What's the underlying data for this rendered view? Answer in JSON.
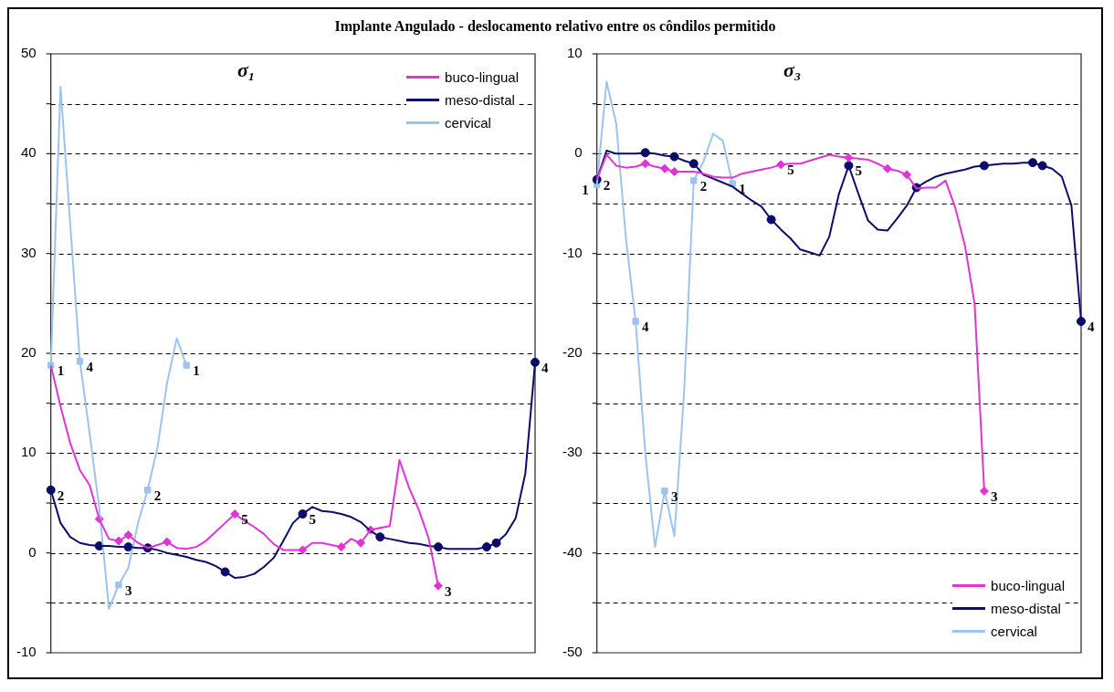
{
  "chart_data": [
    {
      "type": "line",
      "title": "Implante Angulado - deslocamento relativo entre os côndilos permitido",
      "subtitle": "σ₁",
      "categories": [
        null,
        null,
        null,
        null,
        null,
        null,
        null,
        null,
        null,
        null,
        null,
        null,
        null,
        null,
        null,
        null,
        null,
        null,
        null,
        null,
        null,
        null,
        null,
        null,
        null,
        null,
        null,
        null,
        null,
        null,
        null,
        null,
        null,
        null,
        null,
        null,
        null,
        null,
        null,
        null,
        null,
        null,
        null,
        null,
        null,
        null,
        null,
        null,
        null,
        null,
        null
      ],
      "ylim": [
        -10,
        50
      ],
      "yticks": [
        -10,
        {
          "value": -5,
          "label": null
        },
        0,
        {
          "value": 5,
          "label": null
        },
        10,
        {
          "value": 15,
          "label": null
        },
        20,
        {
          "value": 25,
          "label": null
        },
        30,
        {
          "value": 35,
          "label": null
        },
        40,
        {
          "value": 45,
          "label": null
        },
        50
      ],
      "tick_labels": "y",
      "grid": "y",
      "legend": "top right",
      "series": [
        {
          "name": "buco-lingual",
          "color": "#e332d6",
          "marker": "none",
          "values": [
            18.8,
            14.7,
            11,
            8.3,
            6.8,
            3.4,
            1.4,
            1.2,
            1.8,
            1.0,
            0.5,
            0.8,
            1.1,
            0.5,
            0.4,
            0.6,
            1.2,
            2.1,
            3.0,
            3.9,
            3.2,
            2.6,
            1.9,
            0.9,
            0.3,
            0.3,
            0.3,
            1.0,
            1.0,
            0.8,
            0.6,
            1.4,
            1.0,
            2.3,
            2.5,
            2.7,
            9.3,
            6.5,
            4.3,
            1.5,
            -3.3,
            null,
            null,
            null,
            null,
            null,
            null,
            null,
            null,
            null,
            null
          ]
        },
        {
          "name": "meso-distal",
          "color": "#0c0c6a",
          "marker": "none",
          "values": [
            6.3,
            3.0,
            1.6,
            1.0,
            0.8,
            0.7,
            0.7,
            0.6,
            0.6,
            0.5,
            0.5,
            0.3,
            0,
            -0.2,
            -0.4,
            -0.7,
            -0.9,
            -1.3,
            -1.9,
            -2.5,
            -2.4,
            -2.1,
            -1.4,
            -0.5,
            1.2,
            3.0,
            3.9,
            4.6,
            4.2,
            4.1,
            3.9,
            3.6,
            3.1,
            2.2,
            1.6,
            1.4,
            1.2,
            1.0,
            0.9,
            0.7,
            0.6,
            0.4,
            0.4,
            0.4,
            0.4,
            0.6,
            1.0,
            1.9,
            3.5,
            8,
            19.1
          ]
        },
        {
          "name": "cervical",
          "color": "#9cc4ee",
          "marker": "none",
          "values": [
            18.8,
            46.7,
            33.0,
            19.2,
            12.0,
            4.5,
            -5.6,
            -3.2,
            -1.5,
            3.0,
            6.3,
            10.5,
            17.0,
            21.5,
            18.8,
            null,
            null,
            null,
            null,
            null,
            null,
            null,
            null,
            null,
            null,
            null,
            null,
            null,
            null,
            null,
            null,
            null,
            null,
            null,
            null,
            null,
            null,
            null,
            null,
            null,
            null,
            null,
            null,
            null,
            null,
            null,
            null,
            null,
            null,
            null,
            null
          ]
        },
        {
          "type": "scatter",
          "color": "#e332d6",
          "marker": "diamond",
          "values": [
            null,
            null,
            null,
            null,
            null,
            3.4,
            null,
            1.2,
            1.8,
            null,
            null,
            null,
            1.1,
            null,
            null,
            null,
            null,
            null,
            null,
            null,
            null,
            null,
            null,
            null,
            null,
            null,
            0.3,
            null,
            null,
            null,
            0.6,
            null,
            1.0,
            2.3,
            null,
            null,
            null,
            null,
            null,
            null,
            null,
            null,
            null,
            null,
            null,
            null,
            null,
            null,
            null,
            null,
            null
          ]
        },
        {
          "type": "scatter",
          "color": "#0c0c6a",
          "marker": "circle",
          "values": [
            null,
            null,
            null,
            null,
            null,
            0.7,
            null,
            null,
            0.6,
            null,
            0.5,
            null,
            null,
            null,
            null,
            null,
            null,
            null,
            -1.9,
            null,
            null,
            null,
            null,
            null,
            null,
            null,
            null,
            null,
            null,
            null,
            null,
            null,
            null,
            null,
            1.6,
            null,
            null,
            null,
            null,
            null,
            0.6,
            null,
            null,
            null,
            null,
            0.6,
            1.0,
            null,
            null,
            null,
            null
          ]
        },
        {
          "type": "scatter",
          "name": "5",
          "color": "#e332d6",
          "marker": "diamond",
          "values": [
            null,
            null,
            null,
            null,
            null,
            null,
            null,
            null,
            null,
            null,
            null,
            null,
            null,
            null,
            null,
            null,
            null,
            null,
            null,
            3.9,
            null,
            null,
            null,
            null,
            null,
            null,
            null,
            null,
            null,
            null,
            null,
            null,
            null,
            null,
            null,
            null,
            null,
            null,
            null,
            null,
            null,
            null,
            null,
            null,
            null,
            null,
            null,
            null,
            null,
            null,
            null
          ]
        },
        {
          "type": "scatter",
          "name": "3",
          "color": "#e332d6",
          "marker": "diamond",
          "values": [
            null,
            null,
            null,
            null,
            null,
            null,
            null,
            null,
            null,
            null,
            null,
            null,
            null,
            null,
            null,
            null,
            null,
            null,
            null,
            null,
            null,
            null,
            null,
            null,
            null,
            null,
            null,
            null,
            null,
            null,
            null,
            null,
            null,
            null,
            null,
            null,
            null,
            null,
            null,
            null,
            -3.3,
            null,
            null,
            null,
            null,
            null,
            null,
            null,
            null,
            null,
            null
          ]
        },
        {
          "type": "scatter",
          "name": "2",
          "color": "#0c0c6a",
          "marker": "circle",
          "values": [
            6.3,
            null,
            null,
            null,
            null,
            null,
            null,
            null,
            null,
            null,
            null,
            null,
            null,
            null,
            null,
            null,
            null,
            null,
            null,
            null,
            null,
            null,
            null,
            null,
            null,
            null,
            null,
            null,
            null,
            null,
            null,
            null,
            null,
            null,
            null,
            null,
            null,
            null,
            null,
            null,
            null,
            null,
            null,
            null,
            null,
            null,
            null,
            null,
            null,
            null,
            null
          ]
        },
        {
          "type": "scatter",
          "name": "5",
          "color": "#0c0c6a",
          "marker": "circle",
          "values": [
            null,
            null,
            null,
            null,
            null,
            null,
            null,
            null,
            null,
            null,
            null,
            null,
            null,
            null,
            null,
            null,
            null,
            null,
            null,
            null,
            null,
            null,
            null,
            null,
            null,
            null,
            3.9,
            null,
            null,
            null,
            null,
            null,
            null,
            null,
            null,
            null,
            null,
            null,
            null,
            null,
            null,
            null,
            null,
            null,
            null,
            null,
            null,
            null,
            null,
            null,
            null
          ]
        },
        {
          "type": "scatter",
          "name": "4",
          "color": "#0c0c6a",
          "marker": "circle",
          "values": [
            null,
            null,
            null,
            null,
            null,
            null,
            null,
            null,
            null,
            null,
            null,
            null,
            null,
            null,
            null,
            null,
            null,
            null,
            null,
            null,
            null,
            null,
            null,
            null,
            null,
            null,
            null,
            null,
            null,
            null,
            null,
            null,
            null,
            null,
            null,
            null,
            null,
            null,
            null,
            null,
            null,
            null,
            null,
            null,
            null,
            null,
            null,
            null,
            null,
            null,
            19.1
          ]
        },
        {
          "type": "scatter",
          "name": "1",
          "color": "#9cc4ee",
          "marker": "square",
          "values": [
            18.8,
            null,
            null,
            null,
            null,
            null,
            null,
            null,
            null,
            null,
            null,
            null,
            null,
            null,
            null,
            null,
            null,
            null,
            null,
            null,
            null,
            null,
            null,
            null,
            null,
            null,
            null,
            null,
            null,
            null,
            null,
            null,
            null,
            null,
            null,
            null,
            null,
            null,
            null,
            null,
            null,
            null,
            null,
            null,
            null,
            null,
            null,
            null,
            null,
            null,
            null
          ]
        },
        {
          "type": "scatter",
          "name": "4",
          "color": "#9cc4ee",
          "marker": "square",
          "values": [
            null,
            null,
            null,
            19.2,
            null,
            null,
            null,
            null,
            null,
            null,
            null,
            null,
            null,
            null,
            null,
            null,
            null,
            null,
            null,
            null,
            null,
            null,
            null,
            null,
            null,
            null,
            null,
            null,
            null,
            null,
            null,
            null,
            null,
            null,
            null,
            null,
            null,
            null,
            null,
            null,
            null,
            null,
            null,
            null,
            null,
            null,
            null,
            null,
            null,
            null,
            null
          ]
        },
        {
          "type": "scatter",
          "name": "3",
          "color": "#9cc4ee",
          "marker": "square",
          "values": [
            null,
            null,
            null,
            null,
            null,
            null,
            null,
            -3.2,
            null,
            null,
            null,
            null,
            null,
            null,
            null,
            null,
            null,
            null,
            null,
            null,
            null,
            null,
            null,
            null,
            null,
            null,
            null,
            null,
            null,
            null,
            null,
            null,
            null,
            null,
            null,
            null,
            null,
            null,
            null,
            null,
            null,
            null,
            null,
            null,
            null,
            null,
            null,
            null,
            null,
            null,
            null
          ]
        },
        {
          "type": "scatter",
          "name": "2",
          "color": "#9cc4ee",
          "marker": "square",
          "values": [
            null,
            null,
            null,
            null,
            null,
            null,
            null,
            null,
            null,
            null,
            6.3,
            null,
            null,
            null,
            null,
            null,
            null,
            null,
            null,
            null,
            null,
            null,
            null,
            null,
            null,
            null,
            null,
            null,
            null,
            null,
            null,
            null,
            null,
            null,
            null,
            null,
            null,
            null,
            null,
            null,
            null,
            null,
            null,
            null,
            null,
            null,
            null,
            null,
            null,
            null,
            null
          ]
        },
        {
          "type": "scatter",
          "name": "1",
          "color": "#9cc4ee",
          "marker": "square",
          "values": [
            null,
            null,
            null,
            null,
            null,
            null,
            null,
            null,
            null,
            null,
            null,
            null,
            null,
            null,
            18.8,
            null,
            null,
            null,
            null,
            null,
            null,
            null,
            null,
            null,
            null,
            null,
            null,
            null,
            null,
            null,
            null,
            null,
            null,
            null,
            null,
            null,
            null,
            null,
            null,
            null,
            null,
            null,
            null,
            null,
            null,
            null,
            null,
            null,
            null,
            null,
            null
          ]
        }
      ]
    },
    {
      "type": "line",
      "subtitle": "σ₃",
      "categories": [
        null,
        null,
        null,
        null,
        null,
        null,
        null,
        null,
        null,
        null,
        null,
        null,
        null,
        null,
        null,
        null,
        null,
        null,
        null,
        null,
        null,
        null,
        null,
        null,
        null,
        null,
        null,
        null,
        null,
        null,
        null,
        null,
        null,
        null,
        null,
        null,
        null,
        null,
        null,
        null,
        null,
        null,
        null,
        null,
        null,
        null,
        null,
        null,
        null,
        null,
        null
      ],
      "ylim": [
        -50,
        10
      ],
      "yticks": [
        -50,
        {
          "value": -45,
          "label": null
        },
        -40,
        {
          "value": -35,
          "label": null
        },
        -30,
        {
          "value": -25,
          "label": null
        },
        -20,
        {
          "value": -15,
          "label": null
        },
        -10,
        {
          "value": -5,
          "label": null
        },
        0,
        {
          "value": 5,
          "label": null
        },
        10
      ],
      "tick_labels": "y",
      "grid": "y",
      "legend": "bottom right",
      "series": [
        {
          "name": "buco-lingual",
          "color": "#e332d6",
          "marker": "none",
          "values": [
            -2.6,
            -0.1,
            -1.2,
            -1.4,
            -1.3,
            -1.0,
            -1.3,
            -1.5,
            -1.8,
            -1.8,
            -1.8,
            -2.0,
            -2.3,
            -2.4,
            -2.4,
            -2.0,
            -1.8,
            -1.6,
            -1.4,
            -1.1,
            -1.0,
            -1.0,
            -0.7,
            -0.4,
            -0.1,
            -0.3,
            -0.4,
            -0.5,
            -0.6,
            -1.0,
            -1.5,
            -1.7,
            -2.1,
            -3.5,
            -3.4,
            -3.4,
            -2.7,
            -5.4,
            -9.2,
            -15,
            -33.8,
            null,
            null,
            null,
            null,
            null,
            null,
            null,
            null,
            null,
            null
          ]
        },
        {
          "name": "meso-distal",
          "color": "#0c0c6a",
          "marker": "none",
          "values": [
            -2.6,
            0.3,
            0,
            0,
            0,
            0.1,
            0,
            -0.2,
            -0.3,
            -0.7,
            -1.0,
            -2.1,
            -2.5,
            -2.9,
            -3.3,
            -4.0,
            -4.7,
            -5.3,
            -6.6,
            -7.6,
            -8.5,
            -9.6,
            -9.9,
            -10.2,
            -8.3,
            -4.0,
            -1.2,
            -4.0,
            -6.7,
            -7.6,
            -7.7,
            -6.5,
            -5.2,
            -3.4,
            -2.8,
            -2.3,
            -2.0,
            -1.8,
            -1.6,
            -1.3,
            -1.2,
            -1.1,
            -1.0,
            -1.0,
            -0.9,
            -0.9,
            -1.2,
            -1.5,
            -2.3,
            -5.2,
            -16.8
          ]
        },
        {
          "name": "cervical",
          "color": "#9cc4ee",
          "marker": "none",
          "values": [
            -3.1,
            7.2,
            3.0,
            -8.5,
            -16.8,
            -30,
            -39.4,
            -33.8,
            -38.3,
            -24,
            -2.7,
            -0.8,
            2.0,
            1.3,
            -3.0,
            null,
            null,
            null,
            null,
            null,
            null,
            null,
            null,
            null,
            null,
            null,
            null,
            null,
            null,
            null,
            null,
            null,
            null,
            null,
            null,
            null,
            null,
            null,
            null,
            null,
            null,
            null,
            null,
            null,
            null,
            null,
            null,
            null,
            null,
            null,
            null
          ]
        },
        {
          "type": "scatter",
          "color": "#e332d6",
          "marker": "diamond",
          "values": [
            null,
            null,
            null,
            null,
            null,
            -1.0,
            null,
            -1.5,
            -1.8,
            null,
            null,
            null,
            null,
            null,
            null,
            null,
            null,
            null,
            null,
            null,
            null,
            null,
            null,
            null,
            null,
            null,
            -0.4,
            null,
            null,
            null,
            -1.5,
            null,
            -2.1,
            null,
            null,
            null,
            null,
            null,
            null,
            null,
            null,
            null,
            null,
            null,
            null,
            null,
            null,
            null,
            null,
            null,
            null
          ]
        },
        {
          "type": "scatter",
          "color": "#0c0c6a",
          "marker": "circle",
          "values": [
            null,
            null,
            null,
            null,
            null,
            0.1,
            null,
            null,
            -0.3,
            null,
            -1.0,
            null,
            null,
            null,
            null,
            null,
            null,
            null,
            -6.6,
            null,
            null,
            null,
            null,
            null,
            null,
            null,
            null,
            null,
            null,
            null,
            null,
            null,
            null,
            -3.4,
            null,
            null,
            null,
            null,
            null,
            null,
            -1.2,
            null,
            null,
            null,
            null,
            -0.9,
            -1.2,
            null,
            null,
            null,
            null
          ]
        },
        {
          "type": "scatter",
          "name": "5",
          "color": "#e332d6",
          "marker": "diamond",
          "values": [
            null,
            null,
            null,
            null,
            null,
            null,
            null,
            null,
            null,
            null,
            null,
            null,
            null,
            null,
            null,
            null,
            null,
            null,
            null,
            -1.1,
            null,
            null,
            null,
            null,
            null,
            null,
            null,
            null,
            null,
            null,
            null,
            null,
            null,
            null,
            null,
            null,
            null,
            null,
            null,
            null,
            null,
            null,
            null,
            null,
            null,
            null,
            null,
            null,
            null,
            null,
            null
          ]
        },
        {
          "type": "scatter",
          "name": "3",
          "color": "#e332d6",
          "marker": "diamond",
          "values": [
            null,
            null,
            null,
            null,
            null,
            null,
            null,
            null,
            null,
            null,
            null,
            null,
            null,
            null,
            null,
            null,
            null,
            null,
            null,
            null,
            null,
            null,
            null,
            null,
            null,
            null,
            null,
            null,
            null,
            null,
            null,
            null,
            null,
            null,
            null,
            null,
            null,
            null,
            null,
            null,
            -33.8,
            null,
            null,
            null,
            null,
            null,
            null,
            null,
            null,
            null,
            null
          ]
        },
        {
          "type": "scatter",
          "name": "2",
          "color": "#0c0c6a",
          "marker": "circle",
          "values": [
            -2.6,
            null,
            null,
            null,
            null,
            null,
            null,
            null,
            null,
            null,
            null,
            null,
            null,
            null,
            null,
            null,
            null,
            null,
            null,
            null,
            null,
            null,
            null,
            null,
            null,
            null,
            null,
            null,
            null,
            null,
            null,
            null,
            null,
            null,
            null,
            null,
            null,
            null,
            null,
            null,
            null,
            null,
            null,
            null,
            null,
            null,
            null,
            null,
            null,
            null,
            null
          ]
        },
        {
          "type": "scatter",
          "name": "5",
          "color": "#0c0c6a",
          "marker": "circle",
          "values": [
            null,
            null,
            null,
            null,
            null,
            null,
            null,
            null,
            null,
            null,
            null,
            null,
            null,
            null,
            null,
            null,
            null,
            null,
            null,
            null,
            null,
            null,
            null,
            null,
            null,
            null,
            -1.2,
            null,
            null,
            null,
            null,
            null,
            null,
            null,
            null,
            null,
            null,
            null,
            null,
            null,
            null,
            null,
            null,
            null,
            null,
            null,
            null,
            null,
            null,
            null,
            null
          ]
        },
        {
          "type": "scatter",
          "name": "4",
          "color": "#0c0c6a",
          "marker": "circle",
          "values": [
            null,
            null,
            null,
            null,
            null,
            null,
            null,
            null,
            null,
            null,
            null,
            null,
            null,
            null,
            null,
            null,
            null,
            null,
            null,
            null,
            null,
            null,
            null,
            null,
            null,
            null,
            null,
            null,
            null,
            null,
            null,
            null,
            null,
            null,
            null,
            null,
            null,
            null,
            null,
            null,
            null,
            null,
            null,
            null,
            null,
            null,
            null,
            null,
            null,
            null,
            -16.8
          ]
        },
        {
          "type": "scatter",
          "name": "1",
          "color": "#9cc4ee",
          "marker": "square",
          "values": [
            -3.1,
            null,
            null,
            null,
            null,
            null,
            null,
            null,
            null,
            null,
            null,
            null,
            null,
            null,
            null,
            null,
            null,
            null,
            null,
            null,
            null,
            null,
            null,
            null,
            null,
            null,
            null,
            null,
            null,
            null,
            null,
            null,
            null,
            null,
            null,
            null,
            null,
            null,
            null,
            null,
            null,
            null,
            null,
            null,
            null,
            null,
            null,
            null,
            null,
            null,
            null
          ]
        },
        {
          "type": "scatter",
          "name": "4",
          "color": "#9cc4ee",
          "marker": "square",
          "values": [
            null,
            null,
            null,
            null,
            -16.8,
            null,
            null,
            null,
            null,
            null,
            null,
            null,
            null,
            null,
            null,
            null,
            null,
            null,
            null,
            null,
            null,
            null,
            null,
            null,
            null,
            null,
            null,
            null,
            null,
            null,
            null,
            null,
            null,
            null,
            null,
            null,
            null,
            null,
            null,
            null,
            null,
            null,
            null,
            null,
            null,
            null,
            null,
            null,
            null,
            null,
            null
          ]
        },
        {
          "type": "scatter",
          "name": "3",
          "color": "#9cc4ee",
          "marker": "square",
          "values": [
            null,
            null,
            null,
            null,
            null,
            null,
            null,
            -33.8,
            null,
            null,
            null,
            null,
            null,
            null,
            null,
            null,
            null,
            null,
            null,
            null,
            null,
            null,
            null,
            null,
            null,
            null,
            null,
            null,
            null,
            null,
            null,
            null,
            null,
            null,
            null,
            null,
            null,
            null,
            null,
            null,
            null,
            null,
            null,
            null,
            null,
            null,
            null,
            null,
            null,
            null,
            null
          ]
        },
        {
          "type": "scatter",
          "name": "2",
          "color": "#9cc4ee",
          "marker": "square",
          "values": [
            null,
            null,
            null,
            null,
            null,
            null,
            null,
            null,
            null,
            null,
            -2.7,
            null,
            null,
            null,
            null,
            null,
            null,
            null,
            null,
            null,
            null,
            null,
            null,
            null,
            null,
            null,
            null,
            null,
            null,
            null,
            null,
            null,
            null,
            null,
            null,
            null,
            null,
            null,
            null,
            null,
            null,
            null,
            null,
            null,
            null,
            null,
            null,
            null,
            null,
            null,
            null
          ]
        },
        {
          "type": "scatter",
          "name": "1",
          "color": "#9cc4ee",
          "marker": "square",
          "values": [
            null,
            null,
            null,
            null,
            null,
            null,
            null,
            null,
            null,
            null,
            null,
            null,
            null,
            null,
            -3.0,
            null,
            null,
            null,
            null,
            null,
            null,
            null,
            null,
            null,
            null,
            null,
            null,
            null,
            null,
            null,
            null,
            null,
            null,
            null,
            null,
            null,
            null,
            null,
            null,
            null,
            null,
            null,
            null,
            null,
            null,
            null,
            null,
            null,
            null,
            null,
            null
          ]
        }
      ]
    }
  ]
}
